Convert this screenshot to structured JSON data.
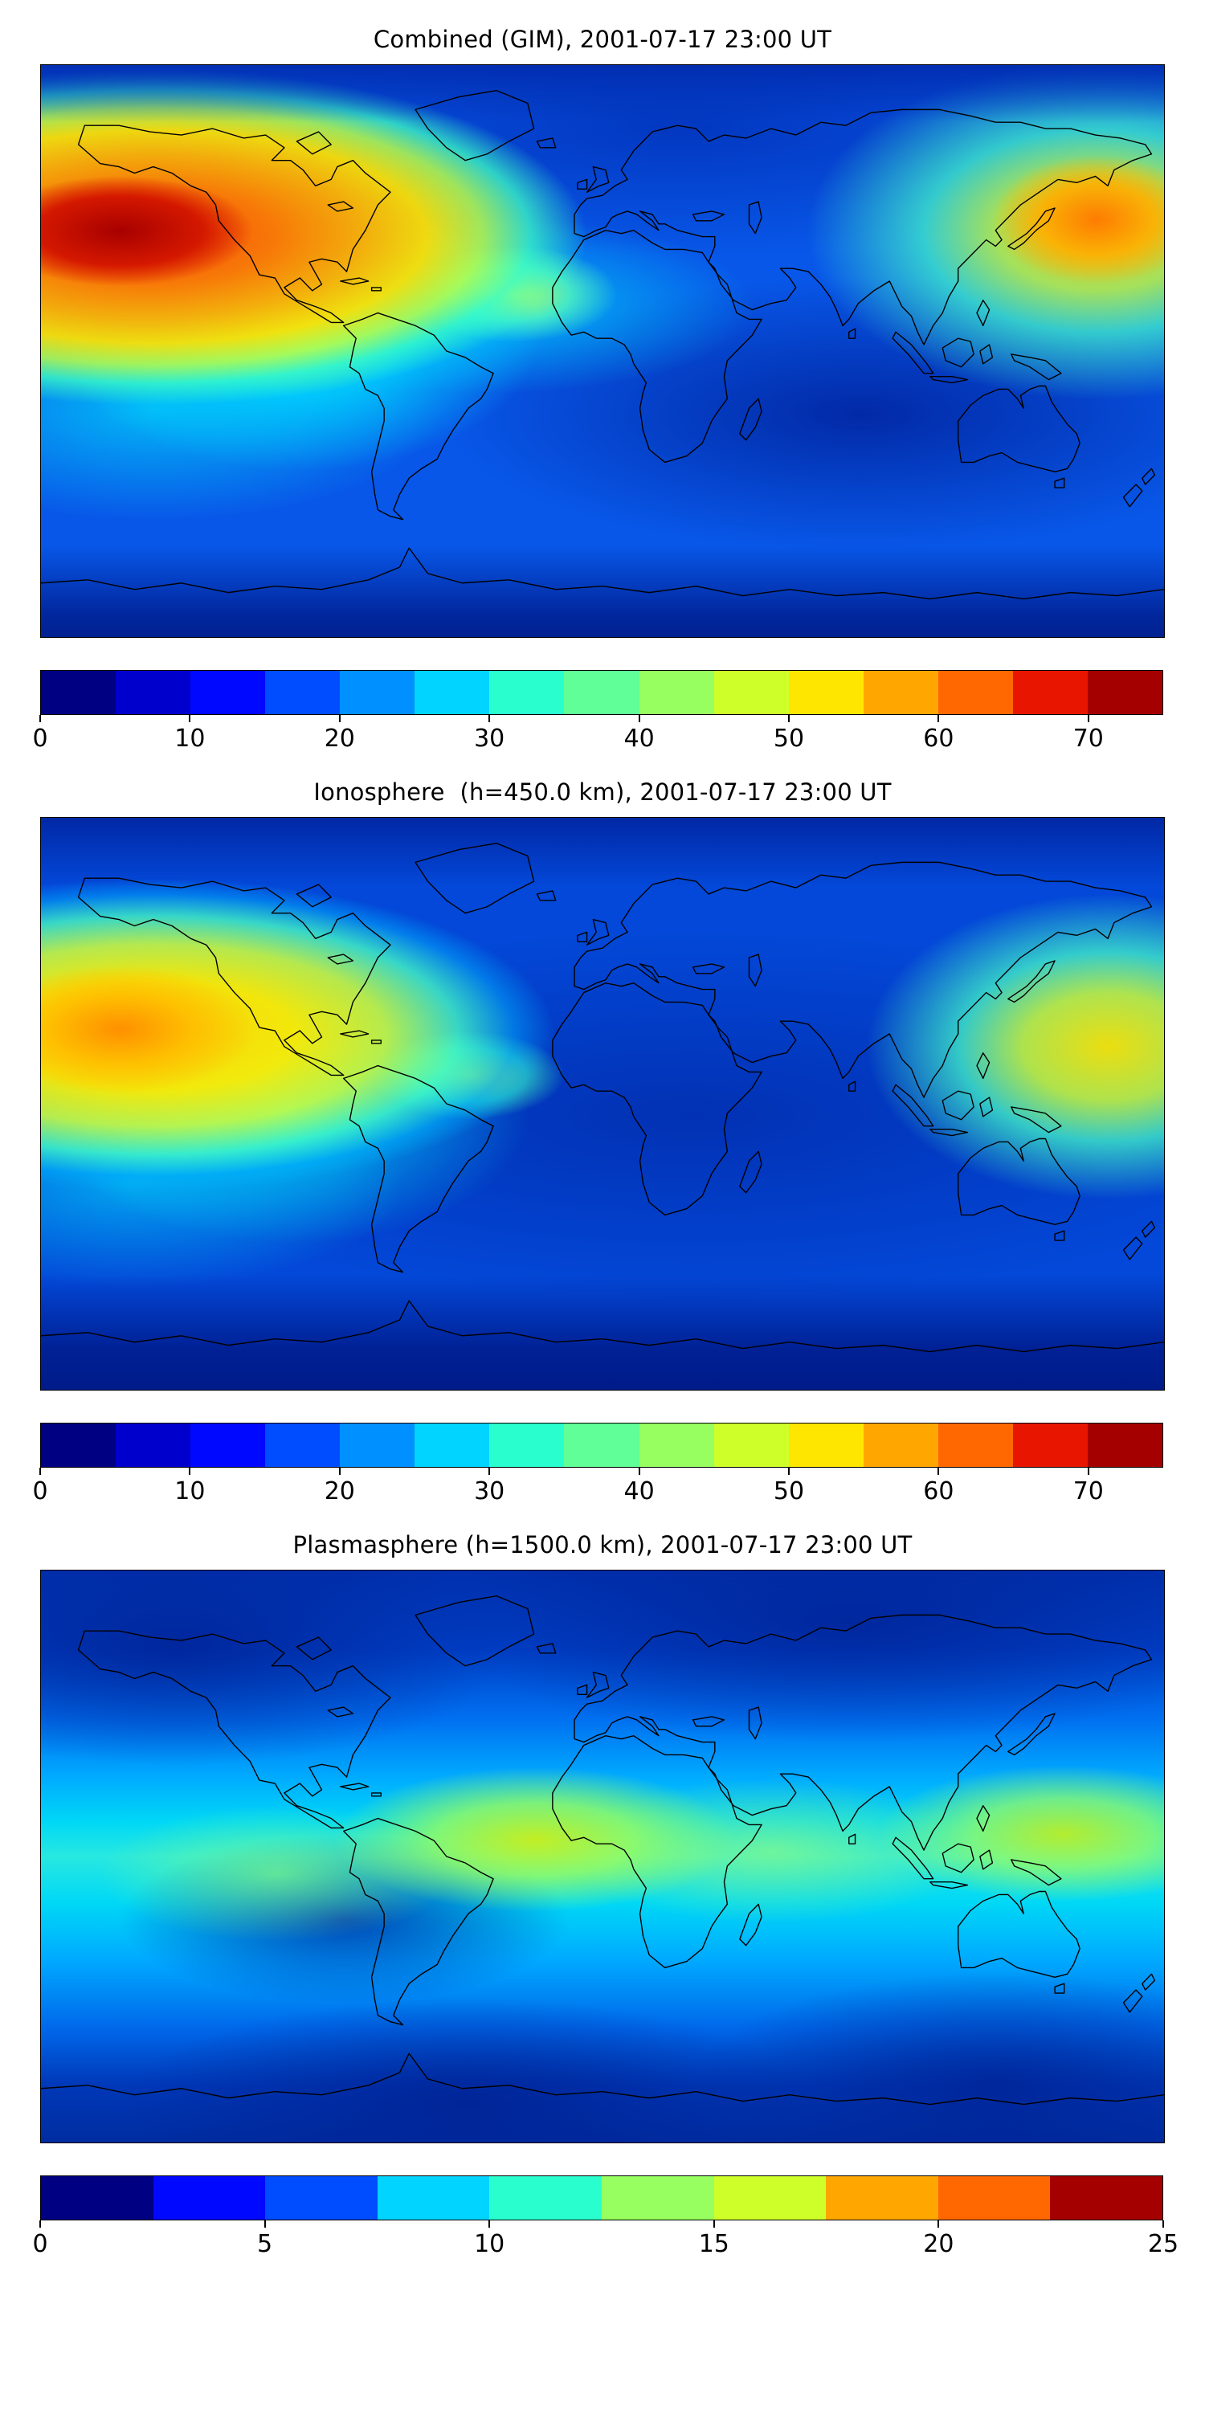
{
  "colormap": {
    "name": "jet",
    "colors": [
      "#000083",
      "#0000cd",
      "#0008ff",
      "#004cff",
      "#0090ff",
      "#00d4ff",
      "#29ffce",
      "#60ff97",
      "#97ff60",
      "#ceff29",
      "#ffe600",
      "#ffa700",
      "#ff6800",
      "#e81500",
      "#a50000"
    ]
  },
  "figure": {
    "panels": [
      {
        "id": "combined",
        "title": "Combined (GIM), 2001-07-17 23:00 UT",
        "colorbar": {
          "min": 0,
          "max": 75,
          "segments": 15,
          "tick_values": [
            0,
            10,
            20,
            30,
            40,
            50,
            60,
            70
          ],
          "tick_labels": [
            "0",
            "10",
            "20",
            "30",
            "40",
            "50",
            "60",
            "70"
          ]
        }
      },
      {
        "id": "ionosphere",
        "title": "Ionosphere  (h=450.0 km), 2001-07-17 23:00 UT",
        "colorbar": {
          "min": 0,
          "max": 75,
          "segments": 15,
          "tick_values": [
            0,
            10,
            20,
            30,
            40,
            50,
            60,
            70
          ],
          "tick_labels": [
            "0",
            "10",
            "20",
            "30",
            "40",
            "50",
            "60",
            "70"
          ]
        }
      },
      {
        "id": "plasmasphere",
        "title": "Plasmasphere (h=1500.0 km), 2001-07-17 23:00 UT",
        "colorbar": {
          "min": 0,
          "max": 25,
          "segments": 10,
          "tick_values": [
            0,
            5,
            10,
            15,
            20,
            25
          ],
          "tick_labels": [
            "0",
            "5",
            "10",
            "15",
            "20",
            "25"
          ]
        }
      }
    ]
  },
  "chart_data": [
    {
      "type": "heatmap",
      "title": "Combined (GIM), 2001-07-17 23:00 UT",
      "projection": "equirectangular world map with coastlines",
      "x_range_lon": [
        -180,
        180
      ],
      "y_range_lat": [
        -90,
        90
      ],
      "value_range": [
        0,
        75
      ],
      "contour_interval": 5,
      "colormap": "jet",
      "colorbar_ticks": [
        0,
        10,
        20,
        30,
        40,
        50,
        60,
        70
      ],
      "grid": false,
      "legend": "horizontal colorbar below map",
      "features": [
        {
          "label": "primary TEC maximum (eastern Pacific)",
          "lon": -150,
          "lat": 30,
          "value": 73
        },
        {
          "label": "secondary maximum (western Pacific, east of Japan)",
          "lon": 158,
          "lat": 32,
          "value": 58
        },
        {
          "label": "equatorial enhancement over South America",
          "lon": -97,
          "lat": 5,
          "value": 35
        },
        {
          "label": "local enhancement mid-Atlantic / West Africa",
          "lon": -29,
          "lat": 18,
          "value": 38
        },
        {
          "label": "southern Pacific cyan patch",
          "lon": -144,
          "lat": -18,
          "value": 28
        },
        {
          "label": "deep minimum southern Indian Ocean",
          "lon": 79,
          "lat": -20,
          "value": 6
        },
        {
          "label": "polar background north",
          "lon": 25,
          "lat": 70,
          "value": 10
        },
        {
          "label": "polar background south",
          "lon": 0,
          "lat": -80,
          "value": 8
        }
      ]
    },
    {
      "type": "heatmap",
      "title": "Ionosphere  (h=450.0 km), 2001-07-17 23:00 UT",
      "projection": "equirectangular world map with coastlines",
      "x_range_lon": [
        -180,
        180
      ],
      "y_range_lat": [
        -90,
        90
      ],
      "value_range": [
        0,
        75
      ],
      "contour_interval": 5,
      "colormap": "jet",
      "colorbar_ticks": [
        0,
        10,
        20,
        30,
        40,
        50,
        60,
        70
      ],
      "grid": false,
      "legend": "horizontal colorbar below map",
      "features": [
        {
          "label": "primary maximum (eastern Pacific)",
          "lon": -150,
          "lat": 22,
          "value": 53
        },
        {
          "label": "secondary maximum (far western Pacific, right edge)",
          "lon": 162,
          "lat": 18,
          "value": 48
        },
        {
          "label": "equatorial cyan region over South America",
          "lon": -100,
          "lat": 0,
          "value": 30
        },
        {
          "label": "small enhancement mid-Atlantic",
          "lon": -43,
          "lat": 9,
          "value": 35
        },
        {
          "label": "broad minimum Africa / Indian Ocean",
          "lon": 30,
          "lat": -5,
          "value": 8
        },
        {
          "label": "southern polar background",
          "lon": 0,
          "lat": -75,
          "value": 5
        }
      ]
    },
    {
      "type": "heatmap",
      "title": "Plasmasphere (h=1500.0 km), 2001-07-17 23:00 UT",
      "projection": "equirectangular world map with coastlines",
      "x_range_lon": [
        -180,
        180
      ],
      "y_range_lat": [
        -90,
        90
      ],
      "value_range": [
        0,
        25
      ],
      "contour_interval": 2.5,
      "colormap": "jet",
      "colorbar_ticks": [
        0,
        5,
        10,
        15,
        20,
        25
      ],
      "grid": false,
      "legend": "horizontal colorbar below map",
      "features": [
        {
          "label": "equatorial cyan band circling globe",
          "lon": 0,
          "lat": 0,
          "value": 12
        },
        {
          "label": "green-yellow maximum over West Africa / Atlantic",
          "lon": -22,
          "lat": 5,
          "value": 16
        },
        {
          "label": "green-yellow maximum western Pacific",
          "lon": 148,
          "lat": 7,
          "value": 16
        },
        {
          "label": "green patch eastern Pacific",
          "lon": -108,
          "lat": -5,
          "value": 13
        },
        {
          "label": "greenish patch over India / Indian Ocean",
          "lon": 54,
          "lat": 2,
          "value": 13
        },
        {
          "label": "dark minimum off eastern South America",
          "lon": -83,
          "lat": -18,
          "value": 4
        },
        {
          "label": "northern polar minimum",
          "lon": -137,
          "lat": 66,
          "value": 3
        },
        {
          "label": "southern polar minimum",
          "lon": -43,
          "lat": -77,
          "value": 3
        }
      ]
    }
  ]
}
